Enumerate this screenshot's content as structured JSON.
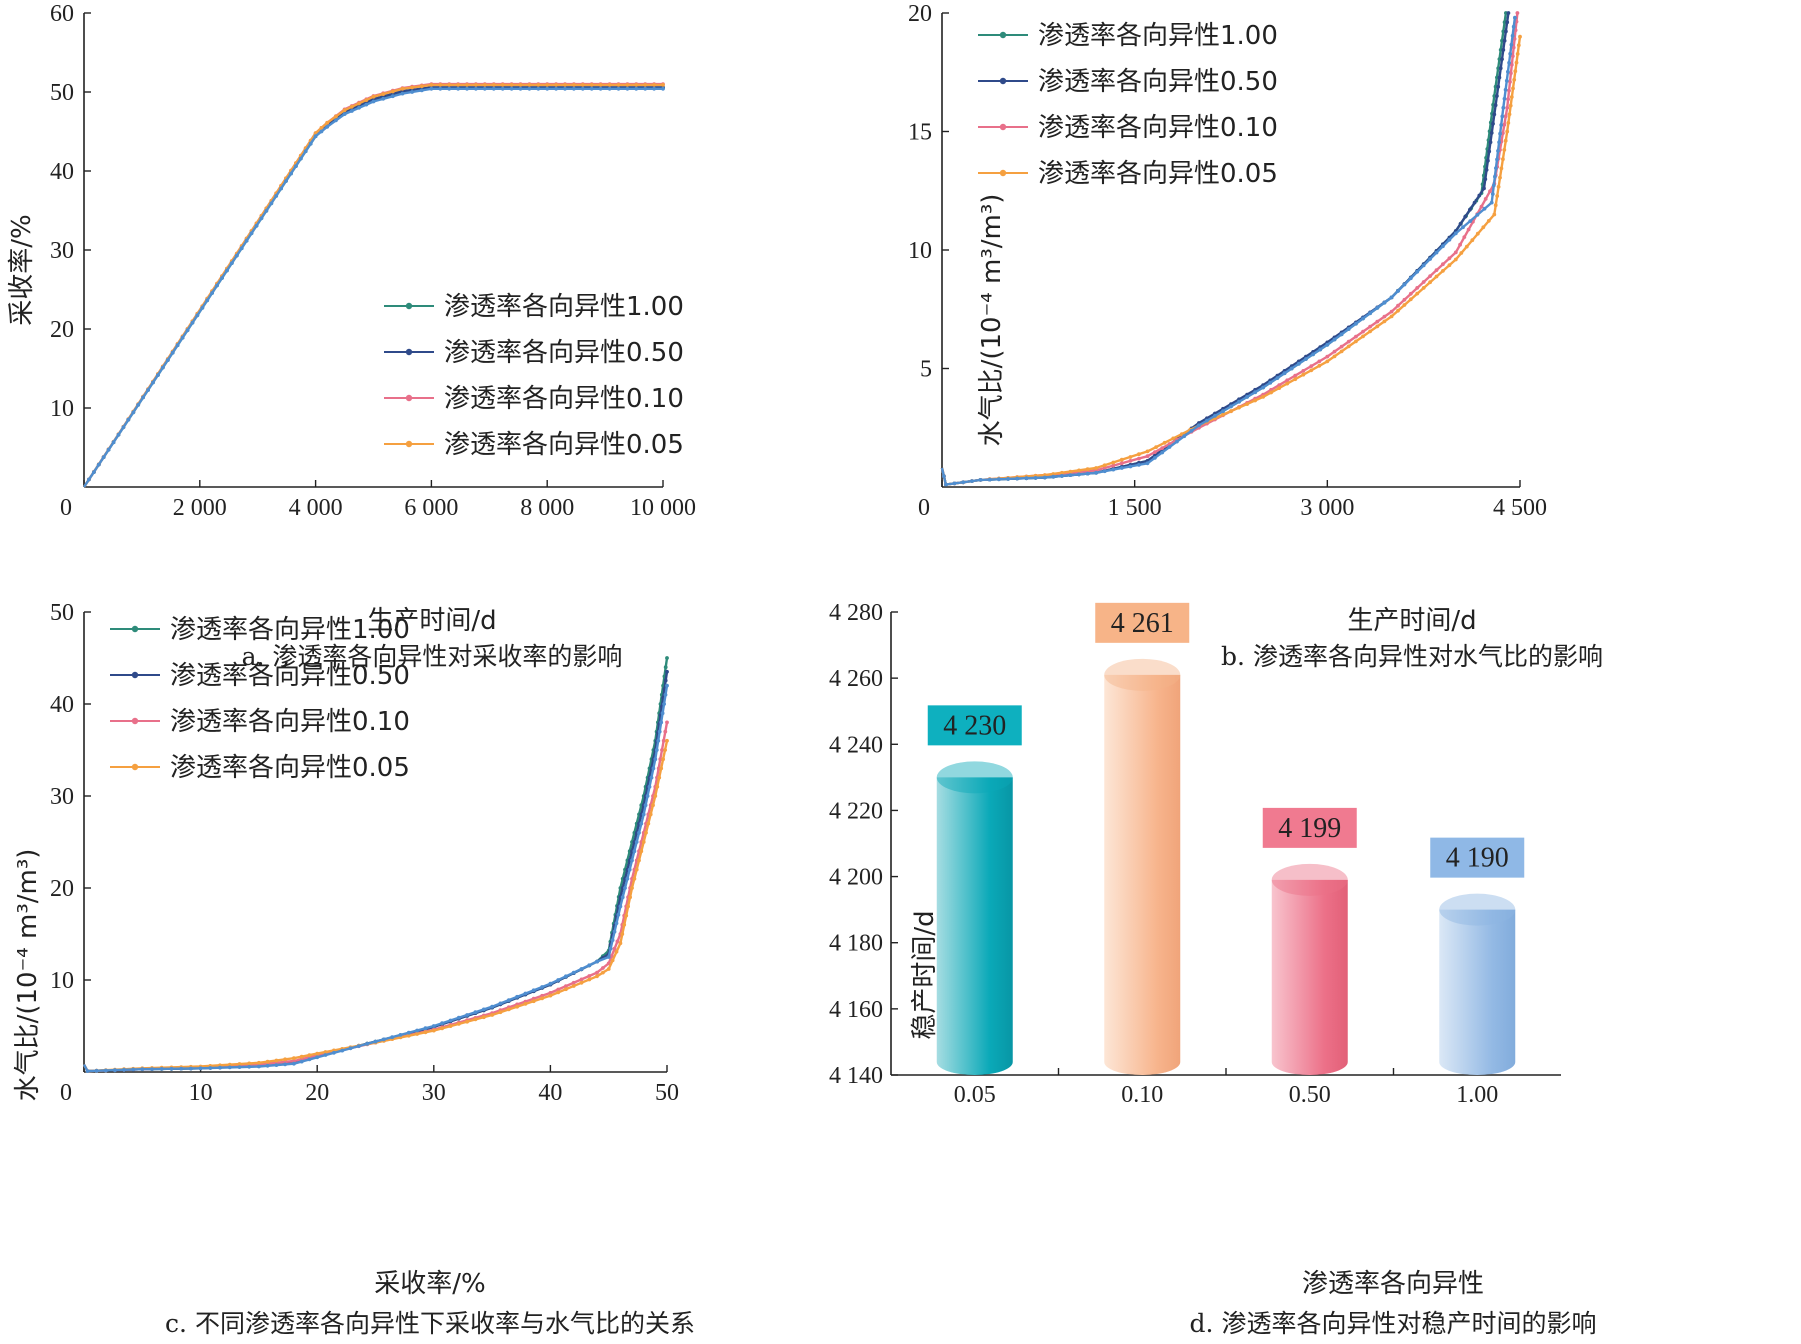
{
  "chart_data": [
    {
      "id": "a",
      "type": "line",
      "caption": "a. 渗透率各向异性对采收率的影响",
      "xlabel": "生产时间/d",
      "ylabel": "采收率/%",
      "xlim": [
        0,
        10000
      ],
      "ylim": [
        0,
        60
      ],
      "xticks": [
        0,
        2000,
        4000,
        6000,
        8000,
        10000
      ],
      "xtick_labels": [
        "0",
        "2 000",
        "4 000",
        "6 000",
        "8 000",
        "10 000"
      ],
      "yticks": [
        10,
        20,
        30,
        40,
        50,
        60
      ],
      "ytick_labels": [
        "10",
        "20",
        "30",
        "40",
        "50",
        "60"
      ],
      "legend_position": "lower-right",
      "series": [
        {
          "name": "渗透率各向异性1.00",
          "color": "#2e8b7a",
          "points": [
            [
              0,
              0
            ],
            [
              4000,
              44.4
            ],
            [
              4200,
              45.7
            ],
            [
              4500,
              47.3
            ],
            [
              5000,
              48.9
            ],
            [
              5500,
              49.9
            ],
            [
              6000,
              50.5
            ],
            [
              10000,
              50.5
            ]
          ]
        },
        {
          "name": "渗透率各向异性0.50",
          "color": "#2f4a8a",
          "points": [
            [
              0,
              0
            ],
            [
              4000,
              44.6
            ],
            [
              4200,
              45.9
            ],
            [
              4500,
              47.5
            ],
            [
              5000,
              49.1
            ],
            [
              5500,
              50.1
            ],
            [
              6000,
              50.6
            ],
            [
              10000,
              50.6
            ]
          ]
        },
        {
          "name": "渗透率各向异性0.10",
          "color": "#e8708a",
          "points": [
            [
              0,
              0
            ],
            [
              4000,
              44.8
            ],
            [
              4200,
              46.1
            ],
            [
              4500,
              47.8
            ],
            [
              5000,
              49.5
            ],
            [
              5500,
              50.5
            ],
            [
              6000,
              51.0
            ],
            [
              10000,
              51.0
            ]
          ]
        },
        {
          "name": "渗透率各向异性0.05",
          "color": "#f5a040",
          "points": [
            [
              0,
              0
            ],
            [
              4000,
              44.8
            ],
            [
              4200,
              46.1
            ],
            [
              4500,
              47.7
            ],
            [
              5000,
              49.4
            ],
            [
              5500,
              50.4
            ],
            [
              6000,
              50.9
            ],
            [
              10000,
              50.9
            ]
          ]
        },
        {
          "name": "",
          "color": "#4f8ed0",
          "points": [
            [
              0,
              0
            ],
            [
              4000,
              44.4
            ],
            [
              4200,
              45.6
            ],
            [
              4500,
              47.2
            ],
            [
              5000,
              48.8
            ],
            [
              5500,
              49.8
            ],
            [
              6000,
              50.4
            ],
            [
              10000,
              50.4
            ]
          ]
        }
      ]
    },
    {
      "id": "b",
      "type": "line",
      "caption": "b. 渗透率各向异性对水气比的影响",
      "xlabel": "生产时间/d",
      "ylabel": "水气比/(10⁻⁴ m³/m³)",
      "xlim": [
        0,
        4500
      ],
      "ylim": [
        0,
        20
      ],
      "xticks": [
        0,
        1500,
        3000,
        4500
      ],
      "xtick_labels": [
        "0",
        "1 500",
        "3 000",
        "4 500"
      ],
      "yticks": [
        5,
        10,
        15,
        20
      ],
      "ytick_labels": [
        "5",
        "10",
        "15",
        "20"
      ],
      "legend_position": "top-left",
      "series": [
        {
          "name": "渗透率各向异性1.00",
          "color": "#2e8b7a",
          "points": [
            [
              0,
              0.8
            ],
            [
              30,
              0.1
            ],
            [
              300,
              0.3
            ],
            [
              800,
              0.4
            ],
            [
              1200,
              0.6
            ],
            [
              1600,
              1.1
            ],
            [
              2000,
              2.6
            ],
            [
              2500,
              4.2
            ],
            [
              3000,
              6.0
            ],
            [
              3500,
              8.0
            ],
            [
              4000,
              10.8
            ],
            [
              4200,
              12.4
            ],
            [
              4300,
              16.5
            ],
            [
              4390,
              20.0
            ]
          ]
        },
        {
          "name": "渗透率各向异性0.50",
          "color": "#2f4a8a",
          "points": [
            [
              0,
              0.8
            ],
            [
              30,
              0.1
            ],
            [
              300,
              0.3
            ],
            [
              800,
              0.4
            ],
            [
              1200,
              0.6
            ],
            [
              1600,
              1.1
            ],
            [
              2000,
              2.7
            ],
            [
              2500,
              4.3
            ],
            [
              3000,
              6.1
            ],
            [
              3500,
              8.0
            ],
            [
              4000,
              10.8
            ],
            [
              4220,
              12.6
            ],
            [
              4320,
              16.5
            ],
            [
              4410,
              20.0
            ]
          ]
        },
        {
          "name": "渗透率各向异性0.10",
          "color": "#e8708a",
          "points": [
            [
              0,
              0.8
            ],
            [
              30,
              0.1
            ],
            [
              300,
              0.3
            ],
            [
              800,
              0.5
            ],
            [
              1200,
              0.7
            ],
            [
              1600,
              1.3
            ],
            [
              2000,
              2.5
            ],
            [
              2500,
              3.9
            ],
            [
              3000,
              5.5
            ],
            [
              3500,
              7.4
            ],
            [
              4000,
              9.9
            ],
            [
              4300,
              12.8
            ],
            [
              4400,
              16.0
            ],
            [
              4480,
              20.0
            ]
          ]
        },
        {
          "name": "渗透率各向异性0.05",
          "color": "#f5a040",
          "points": [
            [
              0,
              0.8
            ],
            [
              30,
              0.1
            ],
            [
              300,
              0.3
            ],
            [
              800,
              0.5
            ],
            [
              1200,
              0.8
            ],
            [
              1600,
              1.5
            ],
            [
              2000,
              2.6
            ],
            [
              2500,
              3.8
            ],
            [
              3000,
              5.3
            ],
            [
              3500,
              7.2
            ],
            [
              4000,
              9.6
            ],
            [
              4300,
              11.5
            ],
            [
              4400,
              15.0
            ],
            [
              4500,
              19.0
            ]
          ]
        },
        {
          "name": "",
          "color": "#4f8ed0",
          "points": [
            [
              0,
              0.8
            ],
            [
              30,
              0.1
            ],
            [
              300,
              0.3
            ],
            [
              800,
              0.4
            ],
            [
              1200,
              0.6
            ],
            [
              1600,
              1.0
            ],
            [
              2000,
              2.6
            ],
            [
              2500,
              4.2
            ],
            [
              3000,
              6.0
            ],
            [
              3500,
              8.0
            ],
            [
              4000,
              10.7
            ],
            [
              4280,
              12.0
            ],
            [
              4370,
              16.0
            ],
            [
              4460,
              19.8
            ]
          ]
        }
      ]
    },
    {
      "id": "c",
      "type": "line",
      "caption": "c. 不同渗透率各向异性下采收率与水气比的关系",
      "xlabel": "采收率/%",
      "ylabel": "水气比/(10⁻⁴ m³/m³)",
      "xlim": [
        0,
        50
      ],
      "ylim": [
        0,
        50
      ],
      "xticks": [
        0,
        10,
        20,
        30,
        40,
        50
      ],
      "xtick_labels": [
        "0",
        "10",
        "20",
        "30",
        "40",
        "50"
      ],
      "yticks": [
        10,
        20,
        30,
        40,
        50
      ],
      "ytick_labels": [
        "10",
        "20",
        "30",
        "40",
        "50"
      ],
      "legend_position": "top-left",
      "series": [
        {
          "name": "渗透率各向异性1.00",
          "color": "#2e8b7a",
          "points": [
            [
              0,
              0.8
            ],
            [
              0.3,
              0.1
            ],
            [
              5,
              0.3
            ],
            [
              10,
              0.4
            ],
            [
              15,
              0.7
            ],
            [
              18,
              1.0
            ],
            [
              20,
              1.7
            ],
            [
              25,
              3.3
            ],
            [
              30,
              4.9
            ],
            [
              35,
              7.0
            ],
            [
              40,
              9.5
            ],
            [
              44,
              12.0
            ],
            [
              45,
              13.2
            ],
            [
              46,
              20.0
            ],
            [
              47,
              25.0
            ],
            [
              48,
              30.0
            ],
            [
              49,
              36.0
            ],
            [
              50,
              45.0
            ]
          ]
        },
        {
          "name": "渗透率各向异性0.50",
          "color": "#2f4a8a",
          "points": [
            [
              0,
              0.8
            ],
            [
              0.3,
              0.1
            ],
            [
              5,
              0.3
            ],
            [
              10,
              0.4
            ],
            [
              15,
              0.7
            ],
            [
              18,
              1.0
            ],
            [
              20,
              1.7
            ],
            [
              25,
              3.3
            ],
            [
              30,
              4.9
            ],
            [
              35,
              7.0
            ],
            [
              40,
              9.5
            ],
            [
              44,
              12.0
            ],
            [
              45,
              12.8
            ],
            [
              46,
              19.0
            ],
            [
              47,
              24.0
            ],
            [
              48,
              29.0
            ],
            [
              49,
              35.0
            ],
            [
              50,
              43.5
            ]
          ]
        },
        {
          "name": "渗透率各向异性0.10",
          "color": "#e8708a",
          "points": [
            [
              0,
              0.8
            ],
            [
              0.3,
              0.1
            ],
            [
              5,
              0.3
            ],
            [
              10,
              0.5
            ],
            [
              15,
              0.8
            ],
            [
              18,
              1.2
            ],
            [
              20,
              1.8
            ],
            [
              25,
              3.2
            ],
            [
              30,
              4.6
            ],
            [
              35,
              6.4
            ],
            [
              40,
              8.6
            ],
            [
              44,
              10.8
            ],
            [
              45,
              11.8
            ],
            [
              46,
              15.0
            ],
            [
              47,
              21.0
            ],
            [
              48,
              26.0
            ],
            [
              49,
              31.0
            ],
            [
              50,
              38.0
            ]
          ]
        },
        {
          "name": "渗透率各向异性0.05",
          "color": "#f5a040",
          "points": [
            [
              0,
              0.8
            ],
            [
              0.3,
              0.1
            ],
            [
              5,
              0.4
            ],
            [
              10,
              0.6
            ],
            [
              15,
              1.0
            ],
            [
              18,
              1.5
            ],
            [
              20,
              2.0
            ],
            [
              25,
              3.2
            ],
            [
              30,
              4.5
            ],
            [
              35,
              6.2
            ],
            [
              40,
              8.3
            ],
            [
              44,
              10.4
            ],
            [
              45,
              11.2
            ],
            [
              46,
              14.0
            ],
            [
              47,
              20.0
            ],
            [
              48,
              25.0
            ],
            [
              49,
              30.0
            ],
            [
              50,
              36.0
            ]
          ]
        },
        {
          "name": "",
          "color": "#4f8ed0",
          "points": [
            [
              0,
              0.8
            ],
            [
              0.3,
              0.1
            ],
            [
              5,
              0.3
            ],
            [
              10,
              0.4
            ],
            [
              15,
              0.6
            ],
            [
              18,
              0.9
            ],
            [
              20,
              1.6
            ],
            [
              25,
              3.3
            ],
            [
              30,
              5.0
            ],
            [
              35,
              7.1
            ],
            [
              40,
              9.6
            ],
            [
              44,
              12.0
            ],
            [
              45,
              12.5
            ],
            [
              46,
              18.0
            ],
            [
              47,
              23.0
            ],
            [
              48,
              28.0
            ],
            [
              49,
              34.0
            ],
            [
              50,
              42.0
            ]
          ]
        }
      ]
    },
    {
      "id": "d",
      "type": "bar",
      "caption": "d. 渗透率各向异性对稳产时间的影响",
      "xlabel": "渗透率各向异性",
      "ylabel": "稳产时间/d",
      "ylim": [
        4140,
        4280
      ],
      "yticks": [
        4140,
        4160,
        4180,
        4200,
        4220,
        4240,
        4260,
        4280
      ],
      "ytick_labels": [
        "4 140",
        "4 160",
        "4 180",
        "4 200",
        "4 220",
        "4 240",
        "4 260",
        "4 280"
      ],
      "categories": [
        "0.05",
        "0.10",
        "0.50",
        "1.00"
      ],
      "values": [
        4230,
        4261,
        4199,
        4190
      ],
      "value_labels": [
        "4 230",
        "4 261",
        "4 199",
        "4 190"
      ],
      "bar_colors": [
        "#0aa9b8",
        "#f5b48a",
        "#ec7088",
        "#8fb6e3"
      ],
      "label_box_colors": [
        "#0eb0bf",
        "#f7b488",
        "#f07a90",
        "#8fb8e6"
      ]
    }
  ]
}
